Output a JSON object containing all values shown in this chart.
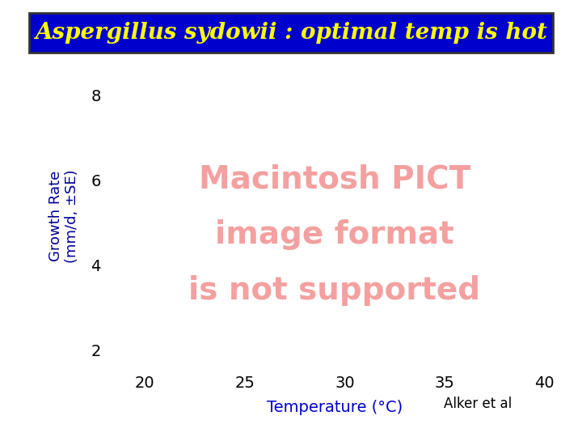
{
  "title": "Aspergillus sydowii : optimal temp is hot",
  "title_color": "#FFFF00",
  "title_bg_color": "#0000CC",
  "title_fontsize": 20,
  "ylabel": "Growth Rate\n(mm/d, ±SE)",
  "ylabel_color": "#000099",
  "xlabel": "Temperature (°C)",
  "xlabel_color": "#0000CC",
  "citation": "Alker et al",
  "citation_color": "#000000",
  "yticks": [
    2,
    4,
    6,
    8
  ],
  "xticks": [
    20,
    25,
    30,
    35,
    40
  ],
  "ylim": [
    1.5,
    8.8
  ],
  "xlim": [
    18,
    41
  ],
  "pict_text_line1": "Macintosh PICT",
  "pict_text_line2": "image format",
  "pict_text_line3": "is not supported",
  "pict_color": "#F4A0A0",
  "bg_color": "#FFFFFF",
  "tick_color": "#000000",
  "tick_fontsize": 14
}
